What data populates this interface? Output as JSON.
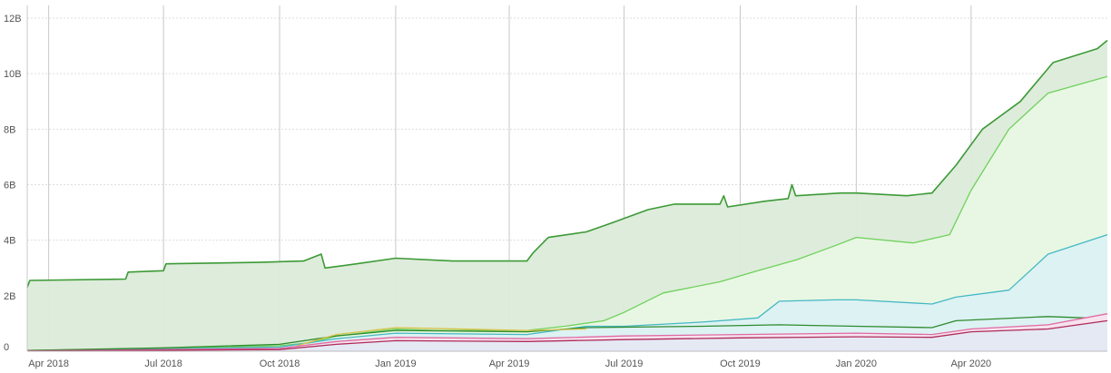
{
  "chart_data": {
    "type": "area",
    "title": "",
    "xlabel": "",
    "ylabel": "",
    "x_ticks": [
      "Apr 2018",
      "Jul 2018",
      "Oct 2018",
      "Jan 2019",
      "Apr 2019",
      "Jul 2019",
      "Oct 2019",
      "Jan 2020",
      "Apr 2020"
    ],
    "x_tick_dates": [
      "2018-04-01",
      "2018-07-01",
      "2018-10-01",
      "2019-01-01",
      "2019-04-01",
      "2019-07-01",
      "2019-10-01",
      "2020-01-01",
      "2020-04-01"
    ],
    "xlim": [
      "2018-03-15",
      "2020-07-18"
    ],
    "y_ticks": [
      "0",
      "2B",
      "4B",
      "6B",
      "8B",
      "10B",
      "12B"
    ],
    "y_tick_values": [
      0,
      2000000000,
      4000000000,
      6000000000,
      8000000000,
      10000000000,
      12000000000
    ],
    "ylim": [
      0,
      12000000000
    ],
    "grid": true,
    "legend": "none",
    "series": [
      {
        "color": "#3c9a36",
        "fill": "#dcebd9",
        "points": [
          [
            "2018-03-15",
            2300000000
          ],
          [
            "2018-03-17",
            2550000000
          ],
          [
            "2018-06-01",
            2600000000
          ],
          [
            "2018-06-03",
            2850000000
          ],
          [
            "2018-07-01",
            2900000000
          ],
          [
            "2018-07-03",
            3150000000
          ],
          [
            "2018-09-15",
            3200000000
          ],
          [
            "2018-10-20",
            3250000000
          ],
          [
            "2018-11-03",
            3500000000
          ],
          [
            "2018-11-06",
            3000000000
          ],
          [
            "2018-12-01",
            3150000000
          ],
          [
            "2019-01-01",
            3350000000
          ],
          [
            "2019-02-15",
            3250000000
          ],
          [
            "2019-04-15",
            3250000000
          ],
          [
            "2019-04-20",
            3550000000
          ],
          [
            "2019-05-02",
            4100000000
          ],
          [
            "2019-06-01",
            4300000000
          ],
          [
            "2019-06-20",
            4600000000
          ],
          [
            "2019-07-20",
            5100000000
          ],
          [
            "2019-08-10",
            5300000000
          ],
          [
            "2019-09-15",
            5300000000
          ],
          [
            "2019-09-18",
            5600000000
          ],
          [
            "2019-09-21",
            5200000000
          ],
          [
            "2019-10-20",
            5400000000
          ],
          [
            "2019-11-08",
            5500000000
          ],
          [
            "2019-11-11",
            6000000000
          ],
          [
            "2019-11-14",
            5600000000
          ],
          [
            "2019-12-20",
            5700000000
          ],
          [
            "2020-01-01",
            5700000000
          ],
          [
            "2020-02-10",
            5600000000
          ],
          [
            "2020-03-01",
            5700000000
          ],
          [
            "2020-03-20",
            6700000000
          ],
          [
            "2020-04-10",
            8000000000
          ],
          [
            "2020-05-10",
            9000000000
          ],
          [
            "2020-06-05",
            10400000000
          ],
          [
            "2020-07-10",
            10900000000
          ],
          [
            "2020-07-18",
            11200000000
          ]
        ]
      },
      {
        "color": "#6fd15c",
        "fill": "#e8f8e4",
        "points": [
          [
            "2018-03-15",
            30000000
          ],
          [
            "2018-07-01",
            100000000
          ],
          [
            "2018-10-01",
            200000000
          ],
          [
            "2018-10-25",
            300000000
          ],
          [
            "2018-11-15",
            550000000
          ],
          [
            "2019-01-01",
            800000000
          ],
          [
            "2019-02-01",
            750000000
          ],
          [
            "2019-04-15",
            750000000
          ],
          [
            "2019-05-15",
            900000000
          ],
          [
            "2019-06-15",
            1100000000
          ],
          [
            "2019-07-01",
            1400000000
          ],
          [
            "2019-08-01",
            2100000000
          ],
          [
            "2019-09-15",
            2500000000
          ],
          [
            "2019-10-15",
            2900000000
          ],
          [
            "2019-11-15",
            3300000000
          ],
          [
            "2019-12-15",
            3800000000
          ],
          [
            "2020-01-01",
            4100000000
          ],
          [
            "2020-02-15",
            3900000000
          ],
          [
            "2020-03-15",
            4200000000
          ],
          [
            "2020-04-01",
            5800000000
          ],
          [
            "2020-05-01",
            8000000000
          ],
          [
            "2020-06-01",
            9300000000
          ],
          [
            "2020-07-18",
            9900000000
          ]
        ]
      },
      {
        "color": "#45b8c4",
        "fill": "#dcf1f3",
        "points": [
          [
            "2018-03-15",
            20000000
          ],
          [
            "2018-07-01",
            80000000
          ],
          [
            "2018-10-01",
            150000000
          ],
          [
            "2018-11-15",
            450000000
          ],
          [
            "2019-01-01",
            650000000
          ],
          [
            "2019-04-15",
            600000000
          ],
          [
            "2019-06-01",
            900000000
          ],
          [
            "2019-07-01",
            900000000
          ],
          [
            "2019-09-01",
            1050000000
          ],
          [
            "2019-10-15",
            1200000000
          ],
          [
            "2019-11-01",
            1800000000
          ],
          [
            "2019-12-15",
            1850000000
          ],
          [
            "2020-01-01",
            1850000000
          ],
          [
            "2020-03-01",
            1700000000
          ],
          [
            "2020-03-20",
            1950000000
          ],
          [
            "2020-05-01",
            2200000000
          ],
          [
            "2020-06-01",
            3500000000
          ],
          [
            "2020-07-18",
            4200000000
          ]
        ]
      },
      {
        "color": "#2e8b2e",
        "fill": "none",
        "points": [
          [
            "2018-03-15",
            30000000
          ],
          [
            "2018-07-01",
            120000000
          ],
          [
            "2018-10-01",
            250000000
          ],
          [
            "2018-11-15",
            550000000
          ],
          [
            "2019-01-01",
            750000000
          ],
          [
            "2019-04-15",
            700000000
          ],
          [
            "2019-06-01",
            850000000
          ],
          [
            "2019-09-01",
            900000000
          ],
          [
            "2019-11-01",
            950000000
          ],
          [
            "2020-01-01",
            900000000
          ],
          [
            "2020-03-01",
            850000000
          ],
          [
            "2020-03-20",
            1100000000
          ],
          [
            "2020-06-01",
            1250000000
          ],
          [
            "2020-07-01",
            1200000000
          ]
        ]
      },
      {
        "color": "#d8c24a",
        "fill": "none",
        "points": [
          [
            "2018-10-15",
            200000000
          ],
          [
            "2018-11-15",
            600000000
          ],
          [
            "2019-01-01",
            850000000
          ],
          [
            "2019-04-15",
            750000000
          ],
          [
            "2019-06-01",
            800000000
          ]
        ]
      },
      {
        "color": "#e06aa3",
        "fill": "#f7e1ec",
        "points": [
          [
            "2018-03-15",
            10000000
          ],
          [
            "2018-10-01",
            100000000
          ],
          [
            "2018-11-15",
            350000000
          ],
          [
            "2019-01-01",
            500000000
          ],
          [
            "2019-04-15",
            450000000
          ],
          [
            "2019-07-01",
            550000000
          ],
          [
            "2019-10-01",
            600000000
          ],
          [
            "2020-01-01",
            650000000
          ],
          [
            "2020-03-01",
            600000000
          ],
          [
            "2020-04-01",
            800000000
          ],
          [
            "2020-06-01",
            950000000
          ],
          [
            "2020-07-18",
            1350000000
          ]
        ]
      },
      {
        "color": "#b02a5a",
        "fill": "#e4e9f4",
        "points": [
          [
            "2018-03-15",
            5000000
          ],
          [
            "2018-10-01",
            60000000
          ],
          [
            "2018-11-15",
            250000000
          ],
          [
            "2019-01-01",
            380000000
          ],
          [
            "2019-04-15",
            350000000
          ],
          [
            "2019-07-01",
            420000000
          ],
          [
            "2019-10-01",
            480000000
          ],
          [
            "2020-01-01",
            520000000
          ],
          [
            "2020-03-01",
            500000000
          ],
          [
            "2020-04-01",
            700000000
          ],
          [
            "2020-06-01",
            800000000
          ],
          [
            "2020-07-18",
            1100000000
          ]
        ]
      }
    ]
  }
}
